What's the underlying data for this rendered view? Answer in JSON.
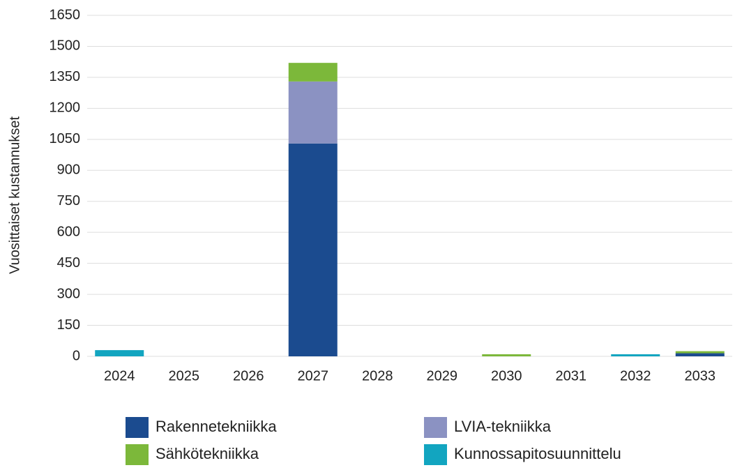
{
  "chart_data": {
    "type": "stacked_bar",
    "y_label": "Vuosittaiset kustannukset",
    "categories": [
      "2024",
      "2025",
      "2026",
      "2027",
      "2028",
      "2029",
      "2030",
      "2031",
      "2032",
      "2033"
    ],
    "series": [
      {
        "name": "Rakennetekniikka",
        "color": "#1b4b8f",
        "values": [
          0,
          0,
          0,
          1030,
          0,
          0,
          0,
          0,
          0,
          15
        ]
      },
      {
        "name": "LVIA-tekniikka",
        "color": "#8b92c2",
        "values": [
          0,
          0,
          0,
          300,
          0,
          0,
          0,
          0,
          0,
          0
        ]
      },
      {
        "name": "Sähkötekniikka",
        "color": "#7cb83a",
        "values": [
          0,
          0,
          0,
          90,
          0,
          0,
          10,
          0,
          0,
          10
        ]
      },
      {
        "name": "Kunnossapitosuunnittelu",
        "color": "#12a5c0",
        "values": [
          30,
          0,
          0,
          0,
          0,
          0,
          0,
          0,
          10,
          0
        ]
      }
    ],
    "ylim": [
      0,
      1650
    ],
    "yticks": [
      0,
      150,
      300,
      450,
      600,
      750,
      900,
      1050,
      1200,
      1350,
      1500,
      1650
    ],
    "grid": true
  }
}
